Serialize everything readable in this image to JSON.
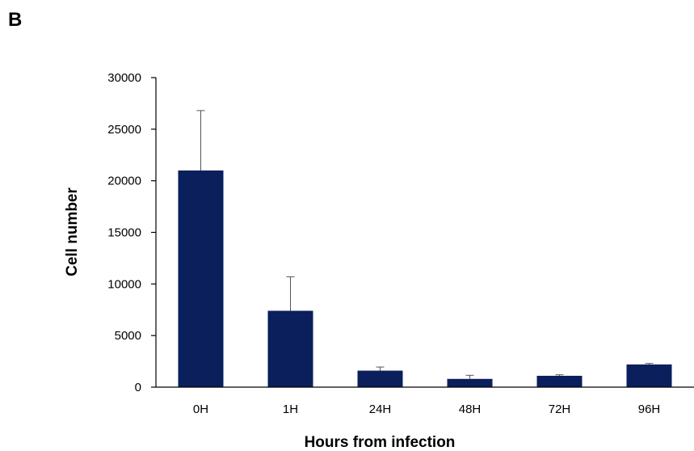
{
  "panel_label": "B",
  "chart_data": {
    "type": "bar",
    "title": "",
    "xlabel": "Hours from infection",
    "ylabel": "Cell number",
    "categories": [
      "0H",
      "1H",
      "24H",
      "48H",
      "72H",
      "96H"
    ],
    "values": [
      21000,
      7400,
      1600,
      800,
      1100,
      2200
    ],
    "error_upper": [
      5800,
      3300,
      350,
      350,
      100,
      100
    ],
    "ylim": [
      0,
      30000
    ],
    "yticks": [
      0,
      5000,
      10000,
      15000,
      20000,
      25000,
      30000
    ],
    "grid": false,
    "legend": "none",
    "bar_color": "#0a1f5c"
  }
}
